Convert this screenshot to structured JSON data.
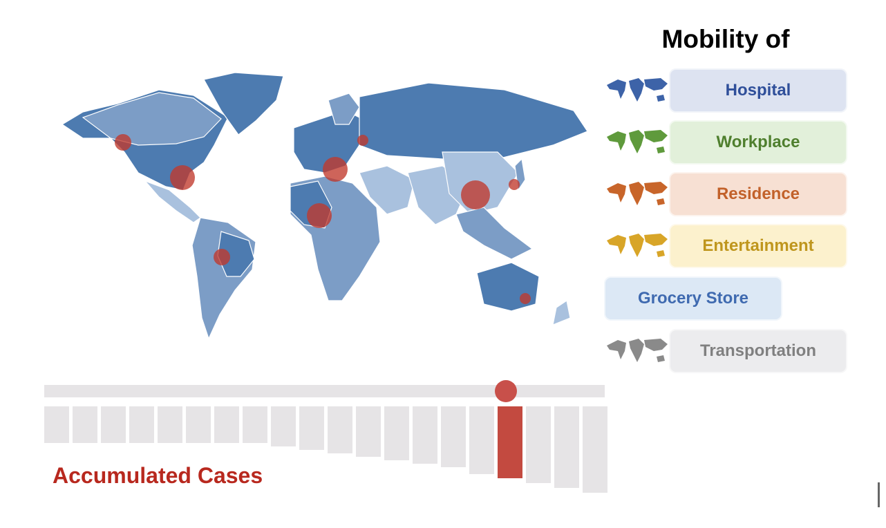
{
  "panel": {
    "title": "Mobility of",
    "modes": [
      {
        "label": "Hospital",
        "text_color": "#2f4f9a",
        "bg": "#dde3f1",
        "map_color": "#3d63a8",
        "has_map": true
      },
      {
        "label": "Workplace",
        "text_color": "#4f7f2e",
        "bg": "#e2f0da",
        "map_color": "#5f9a3c",
        "has_map": true
      },
      {
        "label": "Residence",
        "text_color": "#c2612a",
        "bg": "#f7e0d3",
        "map_color": "#c8652a",
        "has_map": true
      },
      {
        "label": "Entertainment",
        "text_color": "#bf961d",
        "bg": "#fcf1cd",
        "map_color": "#d8a528",
        "has_map": true
      },
      {
        "label": "Grocery Store",
        "text_color": "#3f6ab0",
        "bg": "#dce8f5",
        "map_color": "",
        "has_map": false
      },
      {
        "label": "Transportation",
        "text_color": "#808080",
        "bg": "#ececee",
        "map_color": "#8a8a8a",
        "has_map": true
      }
    ]
  },
  "map": {
    "fill_dark": "#4d7bb0",
    "fill_mid": "#7c9dc6",
    "fill_light": "#a9c1de",
    "case_marker_color": "#c0392b",
    "case_markers": [
      {
        "region": "Western Canada",
        "size": "small"
      },
      {
        "region": "Eastern United States",
        "size": "medium"
      },
      {
        "region": "Europe",
        "size": "medium"
      },
      {
        "region": "Russia",
        "size": "tiny"
      },
      {
        "region": "West Africa",
        "size": "medium"
      },
      {
        "region": "China",
        "size": "large"
      },
      {
        "region": "Japan",
        "size": "tiny"
      },
      {
        "region": "Brazil",
        "size": "small"
      },
      {
        "region": "Australia",
        "size": "tiny"
      }
    ]
  },
  "timeline": {
    "label": "Accumulated Cases",
    "label_color": "#b8281e",
    "active_color": "#c34a40",
    "inactive_color": "#e6e4e6",
    "active_index": 16,
    "bars": [
      0.42,
      0.42,
      0.42,
      0.42,
      0.42,
      0.42,
      0.42,
      0.42,
      0.46,
      0.5,
      0.54,
      0.58,
      0.62,
      0.66,
      0.7,
      0.78,
      0.83,
      0.89,
      0.94,
      1.0
    ]
  }
}
